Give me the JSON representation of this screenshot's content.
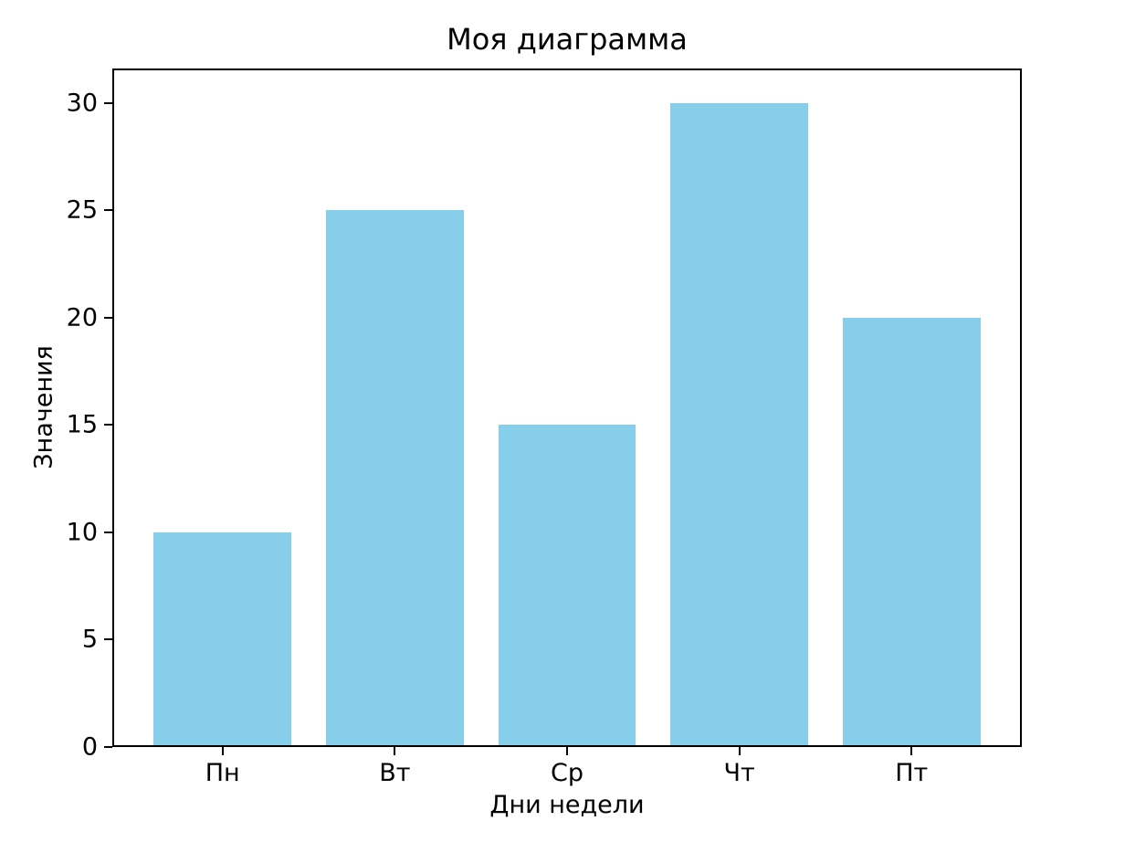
{
  "chart_data": {
    "type": "bar",
    "title": "Моя диаграмма",
    "xlabel": "Дни недели",
    "ylabel": "Значения",
    "categories": [
      "Пн",
      "Вт",
      "Ср",
      "Чт",
      "Пт"
    ],
    "values": [
      10,
      25,
      15,
      30,
      20
    ],
    "yticks": [
      0,
      5,
      10,
      15,
      20,
      25,
      30
    ],
    "ylim": [
      0,
      31.6
    ],
    "bar_color": "#87CEEB",
    "axis_color": "#000000",
    "background_color": "#ffffff",
    "grid": false,
    "legend": "none",
    "bar_width_fraction": 0.8,
    "x_margin": 0.64
  }
}
